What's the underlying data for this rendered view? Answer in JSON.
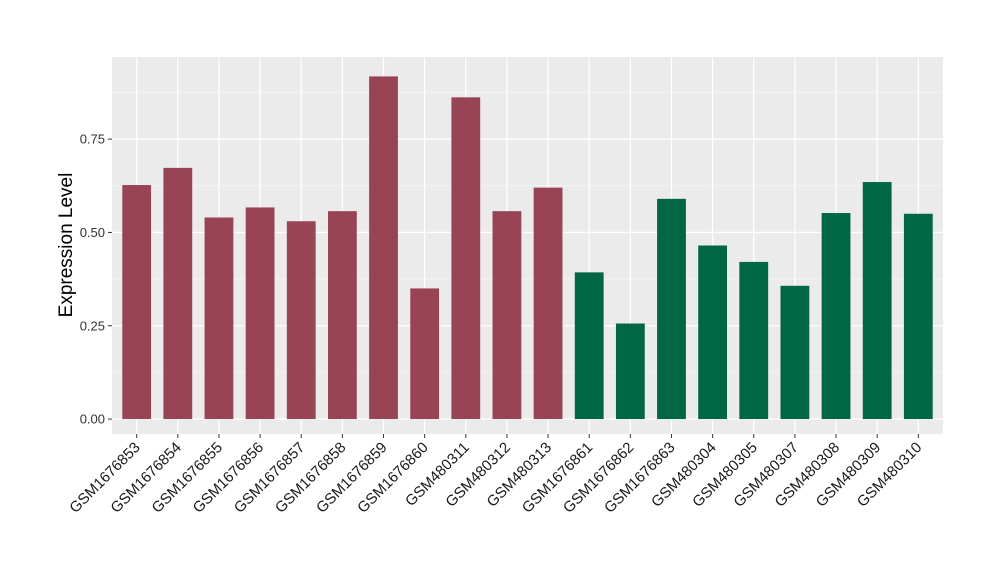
{
  "chart_data": {
    "type": "bar",
    "title": "",
    "xlabel": "",
    "ylabel": "Expression Level",
    "ylim": [
      -0.04,
      0.97
    ],
    "yticks": [
      0.0,
      0.25,
      0.5,
      0.75
    ],
    "ytick_labels": [
      "0.00",
      "0.25",
      "0.50",
      "0.75"
    ],
    "grid": true,
    "categories": [
      "GSM1676853",
      "GSM1676854",
      "GSM1676855",
      "GSM1676856",
      "GSM1676857",
      "GSM1676858",
      "GSM1676859",
      "GSM1676860",
      "GSM480311",
      "GSM480312",
      "GSM480313",
      "GSM1676861",
      "GSM1676862",
      "GSM1676863",
      "GSM480304",
      "GSM480305",
      "GSM480307",
      "GSM480308",
      "GSM480309",
      "GSM480310"
    ],
    "values": [
      0.627,
      0.673,
      0.54,
      0.567,
      0.53,
      0.557,
      0.918,
      0.35,
      0.862,
      0.557,
      0.62,
      0.393,
      0.256,
      0.59,
      0.465,
      0.421,
      0.357,
      0.552,
      0.635,
      0.55
    ],
    "colors": [
      "#994455",
      "#994455",
      "#994455",
      "#994455",
      "#994455",
      "#994455",
      "#994455",
      "#994455",
      "#994455",
      "#994455",
      "#994455",
      "#006644",
      "#006644",
      "#006644",
      "#006644",
      "#006644",
      "#006644",
      "#006644",
      "#006644",
      "#006644"
    ]
  }
}
